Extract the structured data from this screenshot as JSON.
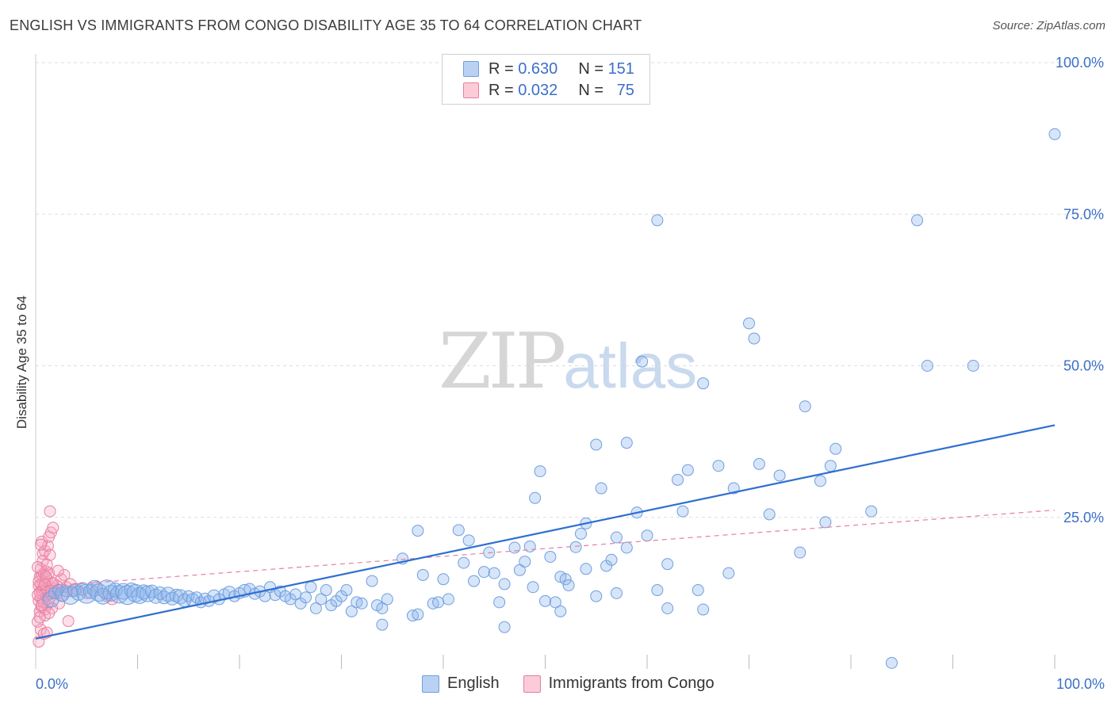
{
  "title": "ENGLISH VS IMMIGRANTS FROM CONGO DISABILITY AGE 35 TO 64 CORRELATION CHART",
  "source": "Source: ZipAtlas.com",
  "watermark": {
    "zip": "ZIP",
    "atlas": "atlas"
  },
  "legend": {
    "rows": [
      {
        "r_label": "R = ",
        "r_value": "0.630",
        "n_label": "N = ",
        "n_value": "151"
      },
      {
        "r_label": "R = ",
        "r_value": "0.032",
        "n_label": "N = ",
        "n_value": "75"
      }
    ]
  },
  "colors": {
    "english_fill": "rgba(140,180,235,0.35)",
    "english_stroke": "#6f9fe0",
    "english_line": "#2e6fd0",
    "congo_fill": "rgba(245,170,195,0.35)",
    "congo_stroke": "#e87fa0",
    "congo_line": "#e57fa0",
    "grid": "#dedede",
    "tick_label": "#3b6fc9"
  },
  "chart_data": {
    "type": "scatter",
    "title": "ENGLISH VS IMMIGRANTS FROM CONGO DISABILITY AGE 35 TO 64 CORRELATION CHART",
    "xlabel": "",
    "ylabel": "Disability Age 35 to 64",
    "xlim": [
      0,
      100
    ],
    "ylim": [
      0,
      100
    ],
    "x_tick_labels": [
      "0.0%",
      "100.0%"
    ],
    "y_ticks": [
      25,
      50,
      75,
      100
    ],
    "y_tick_labels": [
      "25.0%",
      "50.0%",
      "75.0%",
      "100.0%"
    ],
    "legend_position": "bottom",
    "series": [
      {
        "name": "English",
        "R": 0.63,
        "N": 151,
        "trend": {
          "x": [
            0,
            100
          ],
          "y": [
            5.0,
            40.2
          ],
          "style": "solid"
        },
        "points": [
          [
            1.5,
            11.5,
            10
          ],
          [
            1.8,
            12.5,
            7
          ],
          [
            2.2,
            13.0,
            7
          ],
          [
            2.6,
            12.3,
            9
          ],
          [
            3.0,
            12.8,
            7
          ],
          [
            3.4,
            12.1,
            11
          ],
          [
            3.8,
            13.0,
            8
          ],
          [
            4.2,
            12.5,
            9
          ],
          [
            4.6,
            13.2,
            8
          ],
          [
            5.0,
            12.4,
            12
          ],
          [
            5.4,
            12.8,
            9
          ],
          [
            5.8,
            13.3,
            10
          ],
          [
            6.2,
            12.6,
            11
          ],
          [
            6.6,
            12.0,
            10
          ],
          [
            7.0,
            13.1,
            12
          ],
          [
            7.4,
            12.5,
            10
          ],
          [
            7.8,
            13.0,
            9
          ],
          [
            8.2,
            12.3,
            11
          ],
          [
            8.6,
            12.8,
            10
          ],
          [
            9.0,
            12.2,
            12
          ],
          [
            9.4,
            13.0,
            9
          ],
          [
            9.8,
            12.5,
            11
          ],
          [
            10.2,
            12.1,
            10
          ],
          [
            10.6,
            12.7,
            9
          ],
          [
            11.0,
            12.4,
            10
          ],
          [
            11.4,
            12.8,
            8
          ],
          [
            11.8,
            12.0,
            9
          ],
          [
            12.2,
            12.5,
            8
          ],
          [
            12.6,
            11.8,
            8
          ],
          [
            13.0,
            12.3,
            9
          ],
          [
            13.4,
            11.6,
            8
          ],
          [
            13.8,
            12.1,
            8
          ],
          [
            14.2,
            11.9,
            9
          ],
          [
            14.6,
            11.3,
            8
          ],
          [
            15.0,
            12.0,
            7
          ],
          [
            15.4,
            11.4,
            8
          ],
          [
            15.8,
            11.8,
            7
          ],
          [
            16.2,
            11.0,
            7
          ],
          [
            16.6,
            11.6,
            7
          ],
          [
            17.0,
            11.2,
            7
          ],
          [
            17.5,
            12.0,
            8
          ],
          [
            18.0,
            11.5,
            7
          ],
          [
            18.5,
            12.3,
            7
          ],
          [
            19.0,
            12.6,
            8
          ],
          [
            19.5,
            12.0,
            7
          ],
          [
            20.0,
            12.5,
            7
          ],
          [
            20.5,
            12.9,
            8
          ],
          [
            21.0,
            13.2,
            7
          ],
          [
            21.5,
            12.4,
            7
          ],
          [
            22.0,
            12.8,
            7
          ],
          [
            22.5,
            12.0,
            7
          ],
          [
            23.0,
            13.5,
            7
          ],
          [
            23.5,
            12.2,
            7
          ],
          [
            24.0,
            12.8,
            7
          ],
          [
            24.5,
            12.0,
            7
          ],
          [
            25.0,
            11.5,
            7
          ],
          [
            25.5,
            12.3,
            7
          ],
          [
            26.0,
            10.8,
            7
          ],
          [
            26.5,
            11.8,
            7
          ],
          [
            27.0,
            13.5,
            7
          ],
          [
            27.5,
            10.0,
            7
          ],
          [
            28.0,
            11.5,
            7
          ],
          [
            28.5,
            13.0,
            7
          ],
          [
            29.0,
            10.5,
            7
          ],
          [
            29.5,
            11.2,
            7
          ],
          [
            30.0,
            12.0,
            7
          ],
          [
            30.5,
            13.0,
            7
          ],
          [
            31.0,
            9.5,
            7
          ],
          [
            31.5,
            11.0,
            7
          ],
          [
            32.0,
            10.8,
            7
          ],
          [
            33.0,
            14.5,
            7
          ],
          [
            33.5,
            10.5,
            7
          ],
          [
            34.0,
            10.0,
            7
          ],
          [
            34.5,
            11.5,
            7
          ],
          [
            34.0,
            7.3,
            7
          ],
          [
            36.0,
            18.2,
            7
          ],
          [
            37.0,
            8.8,
            7
          ],
          [
            37.5,
            9.0,
            7
          ],
          [
            37.5,
            22.8,
            7
          ],
          [
            38.0,
            15.5,
            7
          ],
          [
            39.0,
            10.8,
            7
          ],
          [
            39.5,
            11.0,
            7
          ],
          [
            40.0,
            14.8,
            7
          ],
          [
            40.5,
            11.5,
            7
          ],
          [
            41.5,
            22.9,
            7
          ],
          [
            42.0,
            17.5,
            7
          ],
          [
            42.5,
            21.2,
            7
          ],
          [
            43.0,
            14.5,
            7
          ],
          [
            44.0,
            16.0,
            7
          ],
          [
            44.5,
            19.2,
            7
          ],
          [
            45.0,
            15.8,
            7
          ],
          [
            45.5,
            11.0,
            7
          ],
          [
            46.0,
            14.0,
            7
          ],
          [
            46.0,
            6.9,
            7
          ],
          [
            47.0,
            20.0,
            7
          ],
          [
            47.5,
            16.3,
            7
          ],
          [
            48.0,
            17.7,
            7
          ],
          [
            48.5,
            20.2,
            7
          ],
          [
            48.8,
            13.5,
            7
          ],
          [
            49.0,
            28.2,
            7
          ],
          [
            49.5,
            32.6,
            7
          ],
          [
            50.0,
            11.2,
            7
          ],
          [
            50.5,
            18.5,
            7
          ],
          [
            51.0,
            11.0,
            7
          ],
          [
            51.5,
            9.5,
            7
          ],
          [
            51.5,
            15.2,
            7
          ],
          [
            52.0,
            14.8,
            7
          ],
          [
            52.3,
            13.8,
            7
          ],
          [
            53.0,
            20.1,
            7
          ],
          [
            53.5,
            22.3,
            7
          ],
          [
            54.0,
            24.0,
            7
          ],
          [
            54.0,
            16.5,
            7
          ],
          [
            55.0,
            12.0,
            7
          ],
          [
            55.0,
            37.0,
            7
          ],
          [
            55.5,
            29.8,
            7
          ],
          [
            56.0,
            17.0,
            7
          ],
          [
            56.5,
            18.0,
            7
          ],
          [
            57.0,
            12.5,
            7
          ],
          [
            57.0,
            21.7,
            7
          ],
          [
            58.0,
            37.3,
            7
          ],
          [
            58.0,
            20.0,
            7
          ],
          [
            59.0,
            25.8,
            7
          ],
          [
            59.5,
            50.7,
            7
          ],
          [
            60.0,
            22.0,
            7
          ],
          [
            61.0,
            13.0,
            7
          ],
          [
            61.0,
            74.0,
            7
          ],
          [
            62.0,
            10.0,
            7
          ],
          [
            62.0,
            17.3,
            7
          ],
          [
            63.0,
            31.2,
            7
          ],
          [
            63.5,
            26.0,
            7
          ],
          [
            64.0,
            32.8,
            7
          ],
          [
            65.0,
            13.0,
            7
          ],
          [
            65.5,
            9.8,
            7
          ],
          [
            65.5,
            47.1,
            7
          ],
          [
            67.0,
            33.5,
            7
          ],
          [
            68.0,
            15.8,
            7
          ],
          [
            68.5,
            29.8,
            7
          ],
          [
            70.0,
            57.0,
            7
          ],
          [
            70.5,
            54.5,
            7
          ],
          [
            71.0,
            33.8,
            7
          ],
          [
            72.0,
            25.5,
            7
          ],
          [
            73.0,
            31.9,
            7
          ],
          [
            75.0,
            19.2,
            7
          ],
          [
            75.5,
            43.3,
            7
          ],
          [
            77.0,
            31.0,
            7
          ],
          [
            77.5,
            24.2,
            7
          ],
          [
            78.0,
            33.5,
            7
          ],
          [
            78.5,
            36.3,
            7
          ],
          [
            82.0,
            26.0,
            7
          ],
          [
            84.0,
            1.0,
            7
          ],
          [
            86.5,
            74.0,
            7
          ],
          [
            87.5,
            50.0,
            7
          ],
          [
            92.0,
            50.0,
            7
          ],
          [
            100.0,
            88.2,
            7
          ]
        ]
      },
      {
        "name": "Immigrants from Congo",
        "R": 0.032,
        "N": 75,
        "trend": {
          "x": [
            0,
            100
          ],
          "y": [
            13.5,
            26.2
          ],
          "style": "dashed"
        },
        "points": [
          [
            0.3,
            4.5,
            7
          ],
          [
            0.5,
            6.5,
            7
          ],
          [
            0.8,
            5.8,
            7
          ],
          [
            0.4,
            9.5,
            7
          ],
          [
            0.6,
            10.2,
            7
          ],
          [
            0.9,
            9.8,
            7
          ],
          [
            1.1,
            10.6,
            7
          ],
          [
            0.3,
            11.2,
            7
          ],
          [
            0.5,
            11.8,
            7
          ],
          [
            0.7,
            11.5,
            7
          ],
          [
            1.0,
            12.0,
            7
          ],
          [
            1.2,
            12.3,
            7
          ],
          [
            0.4,
            12.6,
            7
          ],
          [
            0.6,
            12.9,
            7
          ],
          [
            0.8,
            13.1,
            7
          ],
          [
            1.0,
            13.4,
            7
          ],
          [
            0.3,
            13.7,
            7
          ],
          [
            0.5,
            14.0,
            7
          ],
          [
            0.7,
            14.3,
            7
          ],
          [
            0.9,
            14.6,
            7
          ],
          [
            1.1,
            14.9,
            7
          ],
          [
            0.4,
            15.2,
            7
          ],
          [
            0.6,
            15.5,
            7
          ],
          [
            0.8,
            15.8,
            7
          ],
          [
            1.0,
            16.1,
            7
          ],
          [
            0.5,
            16.5,
            7
          ],
          [
            0.7,
            19.0,
            7
          ],
          [
            0.9,
            19.5,
            7
          ],
          [
            1.2,
            20.3,
            7
          ],
          [
            0.6,
            21.0,
            7
          ],
          [
            1.3,
            21.8,
            7
          ],
          [
            1.5,
            22.5,
            7
          ],
          [
            1.7,
            23.3,
            7
          ],
          [
            1.4,
            26.0,
            7
          ],
          [
            1.3,
            15.8,
            7
          ],
          [
            1.6,
            14.0,
            7
          ],
          [
            1.8,
            13.2,
            7
          ],
          [
            1.5,
            12.4,
            7
          ],
          [
            1.2,
            11.0,
            7
          ],
          [
            2.5,
            14.8,
            7
          ],
          [
            2.8,
            15.5,
            7
          ],
          [
            3.0,
            13.5,
            7
          ],
          [
            2.0,
            12.5,
            7
          ],
          [
            2.3,
            10.8,
            7
          ],
          [
            3.2,
            7.9,
            7
          ],
          [
            2.2,
            16.2,
            7
          ],
          [
            3.6,
            12.8,
            7
          ],
          [
            4.0,
            13.2,
            7
          ],
          [
            5.0,
            12.5,
            7
          ],
          [
            6.0,
            13.5,
            7
          ],
          [
            7.0,
            12.0,
            7
          ],
          [
            7.5,
            11.5,
            7
          ],
          [
            0.2,
            7.8,
            7
          ],
          [
            0.9,
            8.8,
            7
          ],
          [
            1.1,
            6.0,
            7
          ],
          [
            0.7,
            17.8,
            7
          ],
          [
            1.4,
            18.8,
            7
          ],
          [
            0.2,
            16.8,
            7
          ],
          [
            1.6,
            10.0,
            7
          ],
          [
            0.3,
            14.4,
            7
          ],
          [
            1.0,
            15.2,
            7
          ],
          [
            0.8,
            11.0,
            7
          ],
          [
            1.9,
            12.8,
            7
          ],
          [
            2.1,
            13.7,
            7
          ],
          [
            0.6,
            10.5,
            7
          ],
          [
            1.3,
            9.2,
            7
          ],
          [
            0.4,
            8.5,
            7
          ],
          [
            1.7,
            14.2,
            7
          ],
          [
            2.6,
            12.1,
            7
          ],
          [
            0.5,
            20.5,
            7
          ],
          [
            1.1,
            17.2,
            7
          ],
          [
            0.9,
            13.9,
            7
          ],
          [
            1.5,
            12.9,
            7
          ],
          [
            0.2,
            12.2,
            7
          ],
          [
            3.4,
            14.0,
            7
          ]
        ]
      }
    ]
  },
  "bottom_legend": {
    "items": [
      "English",
      "Immigrants from Congo"
    ]
  }
}
